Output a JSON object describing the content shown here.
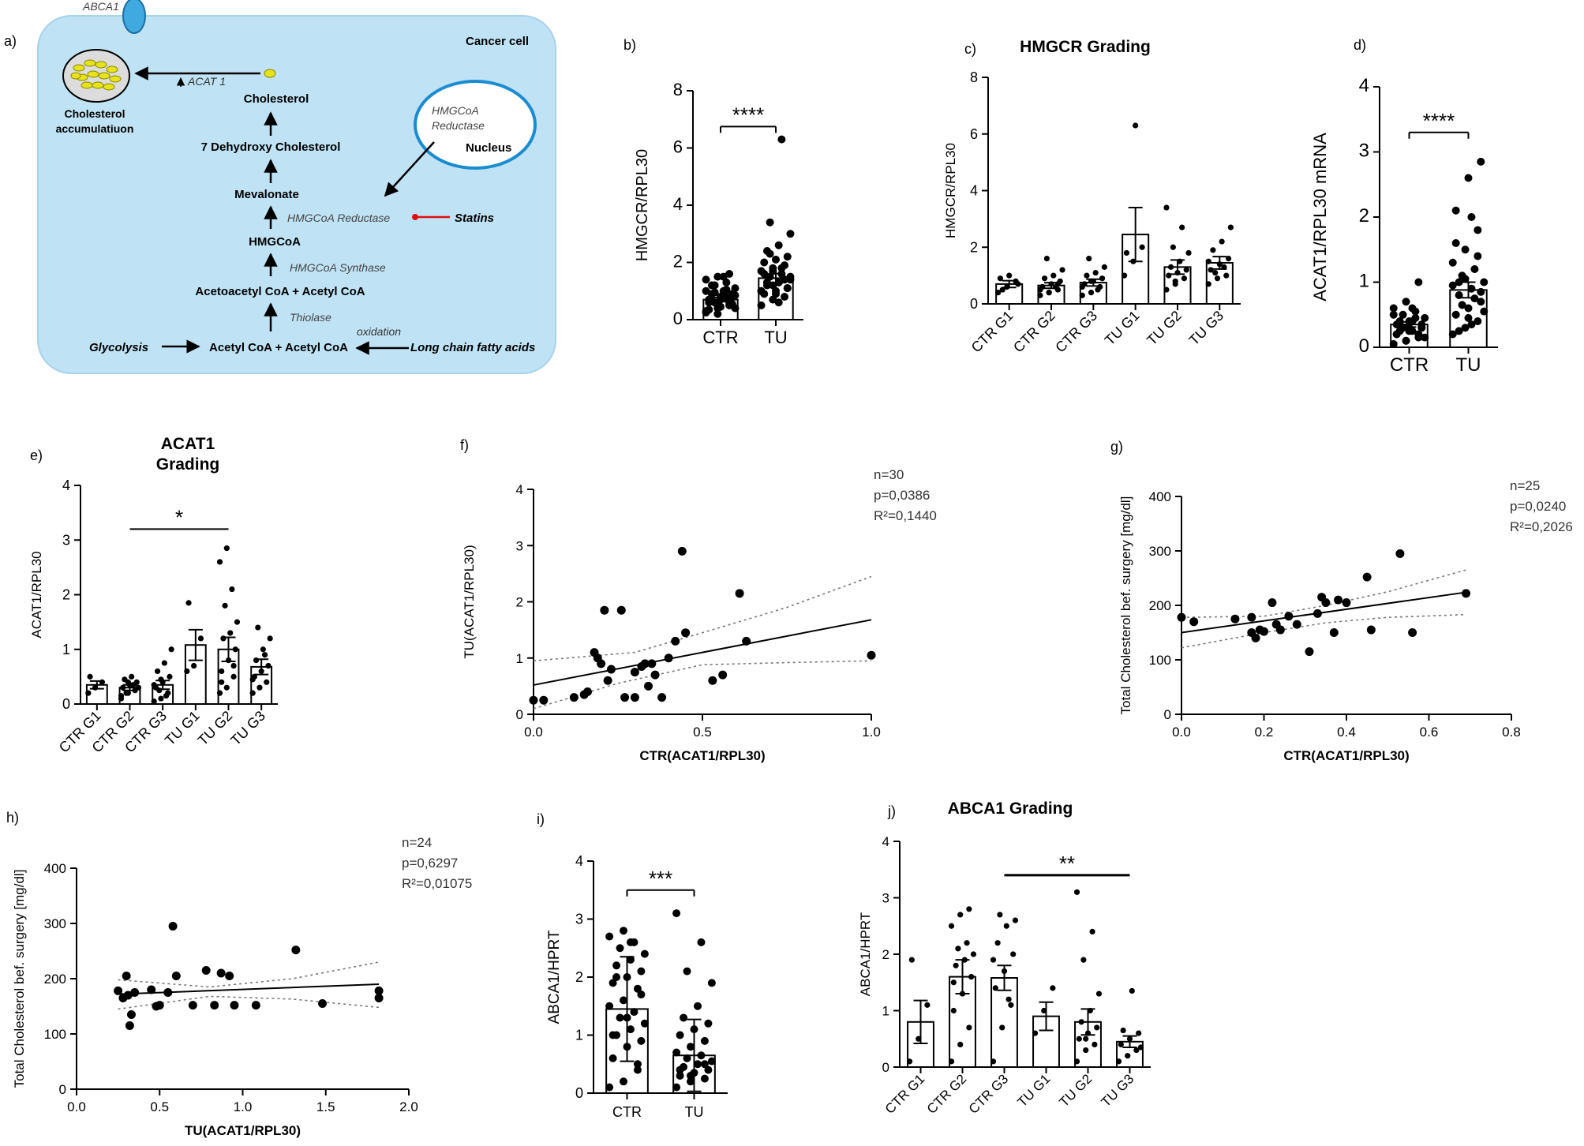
{
  "pathway": {
    "label": "a)",
    "cell_label": "Cancer cell",
    "abca1": "ABCA1",
    "chol_acc": [
      "Cholesterol",
      "accumulatiuon"
    ],
    "acat_label": "ACAT 1",
    "cholesterol": "Cholesterol",
    "dehydroxy": "7 Dehydroxy Cholesterol",
    "mevalonate": "Mevalonate",
    "hmgcoa_reductase": "HMGCoA Reductase",
    "statins": "Statins",
    "hmgcoa": "HMGCoA",
    "hmgcoa_synthase": "HMGCoA Synthase",
    "acetoacetyl": "Acetoacetyl CoA + Acetyl CoA",
    "thiolase": "Thiolase",
    "oxidation": "oxidation",
    "glycolysis": "Glycolysis",
    "acetylcoa": "Acetyl CoA + Acetyl CoA",
    "fatty_acids": "Long chain fatty acids",
    "nucleus_enzyme": [
      "HMGCoA",
      "Reductase"
    ],
    "nucleus": "Nucleus"
  },
  "chart_data": [
    {
      "id": "b",
      "panel_label": "b)",
      "type": "bar",
      "title": "",
      "ylabel": "HMGCR/RPL30",
      "ylim": [
        0,
        8
      ],
      "yticks": [
        "0",
        "2",
        "4",
        "6",
        "8"
      ],
      "categories": [
        "CTR",
        "TU"
      ],
      "values": [
        0.7,
        1.45
      ],
      "errors": [
        0.07,
        0.16
      ],
      "points": [
        [
          0.3,
          0.4,
          0.5,
          0.6,
          0.7,
          0.8,
          0.9,
          1.0,
          1.1,
          1.2,
          1.3,
          1.4,
          1.5,
          1.6,
          0.35,
          0.45,
          0.55,
          0.65,
          0.75,
          0.85,
          0.95,
          1.05,
          0.25,
          0.5,
          0.6,
          0.7,
          0.8,
          0.9,
          1.2,
          1.5,
          0.4,
          0.6,
          0.8,
          1.0,
          0.2
        ],
        [
          0.5,
          0.7,
          0.8,
          0.9,
          1.0,
          1.1,
          1.2,
          1.3,
          1.4,
          1.5,
          1.6,
          1.7,
          1.8,
          1.9,
          2.0,
          2.1,
          2.2,
          2.4,
          2.6,
          3.0,
          3.4,
          6.3,
          1.0,
          1.2,
          1.4,
          1.6,
          0.9,
          1.1,
          1.3,
          0.6,
          1.5,
          2.3,
          1.8,
          1.0,
          1.7
        ]
      ],
      "significance": [
        {
          "from": 0,
          "to": 1,
          "label": "****"
        }
      ]
    },
    {
      "id": "c",
      "panel_label": "c)",
      "type": "bar",
      "title": "HMGCR Grading",
      "ylabel": "HMGCR/RPL30",
      "ylim": [
        0,
        8
      ],
      "yticks": [
        "0",
        "2",
        "4",
        "6",
        "8"
      ],
      "categories": [
        "CTR G1",
        "CTR G2",
        "CTR G3",
        "TU G1",
        "TU G2",
        "TU G3"
      ],
      "values": [
        0.7,
        0.65,
        0.75,
        2.45,
        1.3,
        1.45
      ],
      "errors": [
        0.12,
        0.1,
        0.12,
        0.95,
        0.25,
        0.22
      ],
      "points": [
        [
          0.4,
          0.6,
          0.8,
          0.9,
          1.0,
          0.7,
          0.5
        ],
        [
          0.3,
          0.4,
          0.5,
          0.6,
          0.7,
          0.8,
          0.9,
          1.0,
          1.2,
          1.6,
          0.6,
          0.5,
          0.4,
          0.7
        ],
        [
          0.3,
          0.4,
          0.6,
          0.7,
          0.8,
          0.9,
          1.0,
          1.1,
          1.3,
          1.6,
          0.5,
          0.6,
          0.8
        ],
        [
          1.0,
          1.5,
          2.0,
          1.8,
          6.3
        ],
        [
          0.5,
          0.7,
          0.9,
          1.0,
          1.1,
          1.2,
          1.3,
          1.5,
          1.8,
          2.0,
          2.7,
          3.4,
          0.8
        ],
        [
          0.7,
          0.9,
          1.0,
          1.2,
          1.4,
          1.6,
          1.9,
          2.2,
          2.7,
          1.1,
          1.3,
          1.5
        ]
      ],
      "significance": []
    },
    {
      "id": "d",
      "panel_label": "d)",
      "type": "bar",
      "title": "",
      "ylabel": "ACAT1/RPL30 mRNA",
      "ylim": [
        0,
        4
      ],
      "yticks": [
        "0",
        "1",
        "2",
        "3",
        "4"
      ],
      "categories": [
        "CTR",
        "TU"
      ],
      "values": [
        0.35,
        0.88
      ],
      "errors": [
        0.04,
        0.12
      ],
      "points": [
        [
          0.05,
          0.1,
          0.15,
          0.2,
          0.25,
          0.3,
          0.35,
          0.4,
          0.45,
          0.5,
          0.55,
          0.6,
          0.7,
          1.0,
          0.2,
          0.3,
          0.35,
          0.4,
          0.25,
          0.15,
          0.3,
          0.45,
          0.5,
          0.1,
          0.2,
          0.35,
          0.4,
          0.3,
          0.25,
          0.6
        ],
        [
          0.2,
          0.3,
          0.4,
          0.5,
          0.6,
          0.7,
          0.8,
          0.9,
          1.0,
          1.1,
          1.2,
          1.3,
          1.5,
          1.8,
          2.1,
          2.6,
          2.85,
          0.25,
          0.35,
          0.55,
          0.65,
          0.75,
          0.95,
          1.05,
          1.4,
          1.6,
          0.45,
          0.85,
          1.0,
          2.0
        ]
      ],
      "significance": [
        {
          "from": 0,
          "to": 1,
          "label": "****"
        }
      ]
    },
    {
      "id": "e",
      "panel_label": "e)",
      "type": "bar",
      "title": "ACAT1\nGrading",
      "ylabel": "ACAT1/RPL30",
      "ylim": [
        0,
        4
      ],
      "yticks": [
        "0",
        "1",
        "2",
        "3",
        "4"
      ],
      "categories": [
        "CTR G1",
        "CTR G2",
        "CTR G3",
        "TU G1",
        "TU G2",
        "TU G3"
      ],
      "values": [
        0.35,
        0.3,
        0.35,
        1.08,
        1.0,
        0.68
      ],
      "errors": [
        0.07,
        0.05,
        0.08,
        0.28,
        0.22,
        0.14
      ],
      "points": [
        [
          0.2,
          0.3,
          0.4,
          0.5
        ],
        [
          0.1,
          0.2,
          0.25,
          0.3,
          0.35,
          0.4,
          0.45,
          0.5,
          0.3,
          0.2,
          0.35,
          0.15,
          0.4
        ],
        [
          0.05,
          0.1,
          0.2,
          0.3,
          0.4,
          0.5,
          0.6,
          0.75,
          1.0,
          0.25,
          0.15,
          0.35,
          0.45
        ],
        [
          0.6,
          0.7,
          1.2,
          1.85
        ],
        [
          0.2,
          0.3,
          0.5,
          0.6,
          0.8,
          1.0,
          1.2,
          1.3,
          1.5,
          1.8,
          2.1,
          2.6,
          2.85,
          0.7,
          0.4
        ],
        [
          0.2,
          0.3,
          0.4,
          0.5,
          0.6,
          0.7,
          0.8,
          1.0,
          1.2,
          1.4,
          0.9,
          0.45
        ]
      ],
      "significance": [
        {
          "from": 1,
          "to": 4,
          "label": "*"
        }
      ]
    },
    {
      "id": "f",
      "panel_label": "f)",
      "type": "scatter",
      "xlabel": "CTR(ACAT1/RPL30)",
      "ylabel": "TU(ACAT1/RPL30)",
      "xlim": [
        0,
        1.0
      ],
      "ylim": [
        0,
        4
      ],
      "xticks": [
        "0.0",
        "0.5",
        "1.0"
      ],
      "yticks": [
        "0",
        "1",
        "2",
        "3",
        "4"
      ],
      "points": [
        [
          0.0,
          0.25
        ],
        [
          0.03,
          0.25
        ],
        [
          0.15,
          0.35
        ],
        [
          0.16,
          0.4
        ],
        [
          0.18,
          1.1
        ],
        [
          0.19,
          1.0
        ],
        [
          0.2,
          0.9
        ],
        [
          0.21,
          1.85
        ],
        [
          0.22,
          0.6
        ],
        [
          0.23,
          0.8
        ],
        [
          0.26,
          1.85
        ],
        [
          0.27,
          0.3
        ],
        [
          0.3,
          0.3
        ],
        [
          0.3,
          0.75
        ],
        [
          0.32,
          0.85
        ],
        [
          0.33,
          0.9
        ],
        [
          0.34,
          0.5
        ],
        [
          0.35,
          0.9
        ],
        [
          0.36,
          0.7
        ],
        [
          0.38,
          0.3
        ],
        [
          0.4,
          1.0
        ],
        [
          0.42,
          1.3
        ],
        [
          0.44,
          2.9
        ],
        [
          0.45,
          1.45
        ],
        [
          0.53,
          0.6
        ],
        [
          0.56,
          0.7
        ],
        [
          0.61,
          2.15
        ],
        [
          0.63,
          1.3
        ],
        [
          1.0,
          1.05
        ],
        [
          0.12,
          0.3
        ]
      ],
      "fit": {
        "x": [
          0.0,
          1.0
        ],
        "y": [
          0.52,
          1.68
        ]
      },
      "ci_upper": [
        [
          0.0,
          0.95
        ],
        [
          0.3,
          1.1
        ],
        [
          0.5,
          1.45
        ],
        [
          0.75,
          1.9
        ],
        [
          1.0,
          2.45
        ]
      ],
      "ci_lower": [
        [
          0.0,
          0.1
        ],
        [
          0.25,
          0.55
        ],
        [
          0.5,
          0.88
        ],
        [
          0.75,
          0.92
        ],
        [
          1.0,
          0.95
        ]
      ],
      "stats": [
        "n=30",
        "p=0,0386",
        "R²=0,1440"
      ]
    },
    {
      "id": "g",
      "panel_label": "g)",
      "type": "scatter",
      "xlabel": "CTR(ACAT1/RPL30)",
      "ylabel": "Total Cholesterol bef. surgery [mg/dl]",
      "xlim": [
        0,
        0.8
      ],
      "ylim": [
        0,
        400
      ],
      "xticks": [
        "0.0",
        "0.2",
        "0.4",
        "0.6",
        "0.8"
      ],
      "yticks": [
        "0",
        "100",
        "200",
        "300",
        "400"
      ],
      "points": [
        [
          0.0,
          178
        ],
        [
          0.03,
          170
        ],
        [
          0.13,
          175
        ],
        [
          0.17,
          178
        ],
        [
          0.17,
          150
        ],
        [
          0.18,
          140
        ],
        [
          0.19,
          155
        ],
        [
          0.2,
          152
        ],
        [
          0.22,
          205
        ],
        [
          0.23,
          165
        ],
        [
          0.24,
          155
        ],
        [
          0.26,
          180
        ],
        [
          0.28,
          165
        ],
        [
          0.31,
          115
        ],
        [
          0.33,
          185
        ],
        [
          0.34,
          215
        ],
        [
          0.35,
          205
        ],
        [
          0.37,
          150
        ],
        [
          0.38,
          210
        ],
        [
          0.4,
          205
        ],
        [
          0.45,
          252
        ],
        [
          0.46,
          155
        ],
        [
          0.53,
          295
        ],
        [
          0.56,
          150
        ],
        [
          0.69,
          222
        ]
      ],
      "fit": {
        "x": [
          0.0,
          0.69
        ],
        "y": [
          150,
          224
        ]
      },
      "ci_upper": [
        [
          0.0,
          178
        ],
        [
          0.2,
          180
        ],
        [
          0.35,
          200
        ],
        [
          0.5,
          225
        ],
        [
          0.69,
          265
        ]
      ],
      "ci_lower": [
        [
          0.0,
          122
        ],
        [
          0.2,
          150
        ],
        [
          0.35,
          168
        ],
        [
          0.5,
          178
        ],
        [
          0.69,
          183
        ]
      ],
      "stats": [
        "n=25",
        "p=0,0240",
        "R²=0,2026"
      ]
    },
    {
      "id": "h",
      "panel_label": "h)",
      "type": "scatter",
      "xlabel": "TU(ACAT1/RPL30)",
      "ylabel": "Total Cholesterol bef. surgery [mg/dl]",
      "xlim": [
        0,
        2.0
      ],
      "ylim": [
        0,
        400
      ],
      "xticks": [
        "0.0",
        "0.5",
        "1.0",
        "1.5",
        "2.0"
      ],
      "yticks": [
        "0",
        "100",
        "200",
        "300",
        "400"
      ],
      "points": [
        [
          0.25,
          178
        ],
        [
          0.28,
          165
        ],
        [
          0.3,
          205
        ],
        [
          0.31,
          170
        ],
        [
          0.32,
          115
        ],
        [
          0.33,
          135
        ],
        [
          0.35,
          175
        ],
        [
          0.45,
          180
        ],
        [
          0.48,
          150
        ],
        [
          0.5,
          152
        ],
        [
          0.55,
          175
        ],
        [
          0.58,
          295
        ],
        [
          0.6,
          205
        ],
        [
          0.7,
          152
        ],
        [
          0.78,
          215
        ],
        [
          0.83,
          152
        ],
        [
          0.87,
          210
        ],
        [
          0.92,
          205
        ],
        [
          0.95,
          152
        ],
        [
          1.08,
          152
        ],
        [
          1.32,
          252
        ],
        [
          1.48,
          155
        ],
        [
          1.82,
          178
        ],
        [
          1.82,
          165
        ]
      ],
      "fit": {
        "x": [
          0.25,
          1.82
        ],
        "y": [
          172,
          190
        ]
      },
      "ci_upper": [
        [
          0.25,
          198
        ],
        [
          0.8,
          185
        ],
        [
          1.3,
          200
        ],
        [
          1.82,
          230
        ]
      ],
      "ci_lower": [
        [
          0.25,
          145
        ],
        [
          0.8,
          168
        ],
        [
          1.3,
          163
        ],
        [
          1.82,
          148
        ]
      ],
      "stats": [
        "n=24",
        "p=0,6297",
        "R²=0,01075"
      ]
    },
    {
      "id": "i",
      "panel_label": "i)",
      "type": "bar",
      "title": "",
      "ylabel": "ABCA1/HPRT",
      "ylim": [
        0,
        4
      ],
      "yticks": [
        "0",
        "1",
        "2",
        "3",
        "4"
      ],
      "categories": [
        "CTR",
        "TU"
      ],
      "values": [
        1.45,
        0.65
      ],
      "errors": [
        0.9,
        0.62
      ],
      "points": [
        [
          0.1,
          0.2,
          0.4,
          0.6,
          0.8,
          0.9,
          1.0,
          1.1,
          1.2,
          1.3,
          1.4,
          1.5,
          1.6,
          1.8,
          1.9,
          2.0,
          2.1,
          2.2,
          2.3,
          2.4,
          2.5,
          2.6,
          2.7,
          2.8,
          0.5,
          1.0,
          1.3,
          1.7,
          2.0,
          2.6
        ],
        [
          0.1,
          0.2,
          0.25,
          0.3,
          0.35,
          0.4,
          0.45,
          0.5,
          0.55,
          0.6,
          0.65,
          0.7,
          0.8,
          0.9,
          1.0,
          1.1,
          1.2,
          1.3,
          1.5,
          1.9,
          2.1,
          2.6,
          3.1,
          0.3,
          0.5,
          0.4
        ]
      ],
      "significance": [
        {
          "from": 0,
          "to": 1,
          "label": "***"
        }
      ]
    },
    {
      "id": "j",
      "panel_label": "j)",
      "type": "bar",
      "title": "ABCA1 Grading",
      "ylabel": "ABCA1/HPRT",
      "ylim": [
        0,
        4
      ],
      "yticks": [
        "0",
        "1",
        "2",
        "3",
        "4"
      ],
      "categories": [
        "CTR G1",
        "CTR G2",
        "CTR G3",
        "TU G1",
        "TU G2",
        "TU G3"
      ],
      "values": [
        0.8,
        1.6,
        1.58,
        0.9,
        0.8,
        0.45
      ],
      "errors": [
        0.38,
        0.3,
        0.22,
        0.25,
        0.23,
        0.1
      ],
      "points": [
        [
          0.1,
          0.5,
          1.1,
          1.9
        ],
        [
          0.1,
          0.4,
          0.7,
          1.0,
          1.3,
          1.6,
          1.8,
          1.9,
          2.0,
          2.1,
          2.2,
          2.5,
          2.7,
          2.8,
          1.5
        ],
        [
          0.1,
          0.7,
          1.1,
          1.4,
          1.7,
          2.0,
          2.2,
          2.5,
          2.6,
          2.7,
          1.2,
          1.9
        ],
        [
          0.6,
          1.0,
          1.4
        ],
        [
          0.1,
          0.3,
          0.4,
          0.5,
          0.6,
          0.7,
          0.8,
          1.0,
          1.3,
          1.9,
          2.4,
          3.1,
          0.5
        ],
        [
          0.1,
          0.2,
          0.3,
          0.4,
          0.5,
          0.6,
          0.65,
          1.35,
          0.35
        ]
      ],
      "significance": [
        {
          "from": 2,
          "to": 5,
          "label": "**"
        }
      ]
    }
  ]
}
